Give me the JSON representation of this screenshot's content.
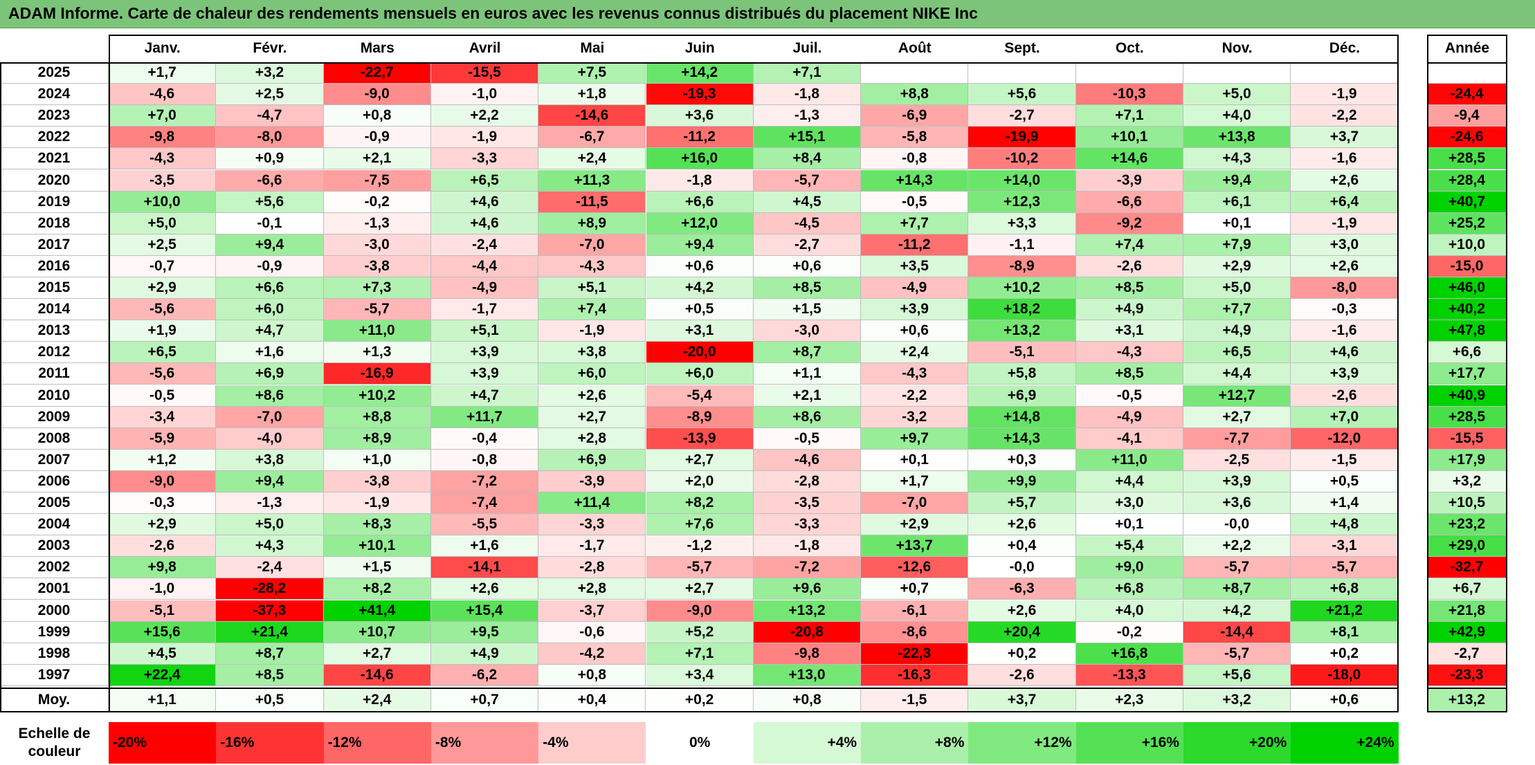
{
  "title": "ADAM Informe. Carte de chaleur des rendements mensuels en euros avec les revenus connus distribués du placement NIKE Inc",
  "chart_data": {
    "type": "heatmap",
    "columns": [
      "Janv.",
      "Févr.",
      "Mars",
      "Avril",
      "Mai",
      "Juin",
      "Juil.",
      "Août",
      "Sept.",
      "Oct.",
      "Nov.",
      "Déc."
    ],
    "year_header": "Année",
    "rows": [
      {
        "year": "2025",
        "values": [
          "+1,7",
          "+3,2",
          "-22,7",
          "-15,5",
          "+7,5",
          "+14,2",
          "+7,1",
          "",
          "",
          "",
          "",
          ""
        ],
        "annual": ""
      },
      {
        "year": "2024",
        "values": [
          "-4,6",
          "+2,5",
          "-9,0",
          "-1,0",
          "+1,8",
          "-19,3",
          "-1,8",
          "+8,8",
          "+5,6",
          "-10,3",
          "+5,0",
          "-1,9"
        ],
        "annual": "-24,4"
      },
      {
        "year": "2023",
        "values": [
          "+7,0",
          "-4,7",
          "+0,8",
          "+2,2",
          "-14,6",
          "+3,6",
          "-1,3",
          "-6,9",
          "-2,7",
          "+7,1",
          "+4,0",
          "-2,2"
        ],
        "annual": "-9,4"
      },
      {
        "year": "2022",
        "values": [
          "-9,8",
          "-8,0",
          "-0,9",
          "-1,9",
          "-6,7",
          "-11,2",
          "+15,1",
          "-5,8",
          "-19,9",
          "+10,1",
          "+13,8",
          "+3,7"
        ],
        "annual": "-24,6"
      },
      {
        "year": "2021",
        "values": [
          "-4,3",
          "+0,9",
          "+2,1",
          "-3,3",
          "+2,4",
          "+16,0",
          "+8,4",
          "-0,8",
          "-10,2",
          "+14,6",
          "+4,3",
          "-1,6"
        ],
        "annual": "+28,5"
      },
      {
        "year": "2020",
        "values": [
          "-3,5",
          "-6,6",
          "-7,5",
          "+6,5",
          "+11,3",
          "-1,8",
          "-5,7",
          "+14,3",
          "+14,0",
          "-3,9",
          "+9,4",
          "+2,6"
        ],
        "annual": "+28,4"
      },
      {
        "year": "2019",
        "values": [
          "+10,0",
          "+5,6",
          "-0,2",
          "+4,6",
          "-11,5",
          "+6,6",
          "+4,5",
          "-0,5",
          "+12,3",
          "-6,6",
          "+6,1",
          "+6,4"
        ],
        "annual": "+40,7"
      },
      {
        "year": "2018",
        "values": [
          "+5,0",
          "-0,1",
          "-1,3",
          "+4,6",
          "+8,9",
          "+12,0",
          "-4,5",
          "+7,7",
          "+3,3",
          "-9,2",
          "+0,1",
          "-1,9"
        ],
        "annual": "+25,2"
      },
      {
        "year": "2017",
        "values": [
          "+2,5",
          "+9,4",
          "-3,0",
          "-2,4",
          "-7,0",
          "+9,4",
          "-2,7",
          "-11,2",
          "-1,1",
          "+7,4",
          "+7,9",
          "+3,0"
        ],
        "annual": "+10,0"
      },
      {
        "year": "2016",
        "values": [
          "-0,7",
          "-0,9",
          "-3,8",
          "-4,4",
          "-4,3",
          "+0,6",
          "+0,6",
          "+3,5",
          "-8,9",
          "-2,6",
          "+2,9",
          "+2,6"
        ],
        "annual": "-15,0"
      },
      {
        "year": "2015",
        "values": [
          "+2,9",
          "+6,6",
          "+7,3",
          "-4,9",
          "+5,1",
          "+4,2",
          "+8,5",
          "-4,9",
          "+10,2",
          "+8,5",
          "+5,0",
          "-8,0"
        ],
        "annual": "+46,0"
      },
      {
        "year": "2014",
        "values": [
          "-5,6",
          "+6,0",
          "-5,7",
          "-1,7",
          "+7,4",
          "+0,5",
          "+1,5",
          "+3,9",
          "+18,2",
          "+4,9",
          "+7,7",
          "-0,3"
        ],
        "annual": "+40,2"
      },
      {
        "year": "2013",
        "values": [
          "+1,9",
          "+4,7",
          "+11,0",
          "+5,1",
          "-1,9",
          "+3,1",
          "-3,0",
          "+0,6",
          "+13,2",
          "+3,1",
          "+4,9",
          "-1,6"
        ],
        "annual": "+47,8"
      },
      {
        "year": "2012",
        "values": [
          "+6,5",
          "+1,6",
          "+1,3",
          "+3,9",
          "+3,8",
          "-20,0",
          "+8,7",
          "+2,4",
          "-5,1",
          "-4,3",
          "+6,5",
          "+4,6"
        ],
        "annual": "+6,6"
      },
      {
        "year": "2011",
        "values": [
          "-5,6",
          "+6,9",
          "-16,9",
          "+3,9",
          "+6,0",
          "+6,0",
          "+1,1",
          "-4,3",
          "+5,8",
          "+8,5",
          "+4,4",
          "+3,9"
        ],
        "annual": "+17,7"
      },
      {
        "year": "2010",
        "values": [
          "-0,5",
          "+8,6",
          "+10,2",
          "+4,7",
          "+2,6",
          "-5,4",
          "+2,1",
          "-2,2",
          "+6,9",
          "-0,5",
          "+12,7",
          "-2,6"
        ],
        "annual": "+40,9"
      },
      {
        "year": "2009",
        "values": [
          "-3,4",
          "-7,0",
          "+8,8",
          "+11,7",
          "+2,7",
          "-8,9",
          "+8,6",
          "-3,2",
          "+14,8",
          "-4,9",
          "+2,7",
          "+7,0"
        ],
        "annual": "+28,5"
      },
      {
        "year": "2008",
        "values": [
          "-5,9",
          "-4,0",
          "+8,9",
          "-0,4",
          "+2,8",
          "-13,9",
          "-0,5",
          "+9,7",
          "+14,3",
          "-4,1",
          "-7,7",
          "-12,0"
        ],
        "annual": "-15,5"
      },
      {
        "year": "2007",
        "values": [
          "+1,2",
          "+3,8",
          "+1,0",
          "-0,8",
          "+6,9",
          "+2,7",
          "-4,6",
          "+0,1",
          "+0,3",
          "+11,0",
          "-2,5",
          "-1,5"
        ],
        "annual": "+17,9"
      },
      {
        "year": "2006",
        "values": [
          "-9,0",
          "+9,4",
          "-3,8",
          "-7,2",
          "-3,9",
          "+2,0",
          "-2,8",
          "+1,7",
          "+9,9",
          "+4,4",
          "+3,9",
          "+0,5"
        ],
        "annual": "+3,2"
      },
      {
        "year": "2005",
        "values": [
          "-0,3",
          "-1,3",
          "-1,9",
          "-7,4",
          "+11,4",
          "+8,2",
          "-3,5",
          "-7,0",
          "+5,7",
          "+3,0",
          "+3,6",
          "+1,4"
        ],
        "annual": "+10,5"
      },
      {
        "year": "2004",
        "values": [
          "+2,9",
          "+5,0",
          "+8,3",
          "-5,5",
          "-3,3",
          "+7,6",
          "-3,3",
          "+2,9",
          "+2,6",
          "+0,1",
          "-0,0",
          "+4,8"
        ],
        "annual": "+23,2"
      },
      {
        "year": "2003",
        "values": [
          "-2,6",
          "+4,3",
          "+10,1",
          "+1,6",
          "-1,7",
          "-1,2",
          "-1,8",
          "+13,7",
          "+0,4",
          "+5,4",
          "+2,2",
          "-3,1"
        ],
        "annual": "+29,0"
      },
      {
        "year": "2002",
        "values": [
          "+9,8",
          "-2,4",
          "+1,5",
          "-14,1",
          "-2,8",
          "-5,7",
          "-7,2",
          "-12,6",
          "-0,0",
          "+9,0",
          "-5,7",
          "-5,7"
        ],
        "annual": "-32,7"
      },
      {
        "year": "2001",
        "values": [
          "-1,0",
          "-28,2",
          "+8,2",
          "+2,6",
          "+2,8",
          "+2,7",
          "+9,6",
          "+0,7",
          "-6,3",
          "+6,8",
          "+8,7",
          "+6,8"
        ],
        "annual": "+6,7"
      },
      {
        "year": "2000",
        "values": [
          "-5,1",
          "-37,3",
          "+41,4",
          "+15,4",
          "-3,7",
          "-9,0",
          "+13,2",
          "-6,1",
          "+2,6",
          "+4,0",
          "+4,2",
          "+21,2"
        ],
        "annual": "+21,8"
      },
      {
        "year": "1999",
        "values": [
          "+15,6",
          "+21,4",
          "+10,7",
          "+9,5",
          "-0,6",
          "+5,2",
          "-20,8",
          "-8,6",
          "+20,4",
          "-0,2",
          "-14,4",
          "+8,1"
        ],
        "annual": "+42,9"
      },
      {
        "year": "1998",
        "values": [
          "+4,5",
          "+8,7",
          "+2,7",
          "+4,9",
          "-4,2",
          "+7,1",
          "-9,8",
          "-22,3",
          "+0,2",
          "+16,8",
          "-5,7",
          "+0,2"
        ],
        "annual": "-2,7"
      },
      {
        "year": "1997",
        "values": [
          "+22,4",
          "+8,5",
          "-14,6",
          "-6,2",
          "+0,8",
          "+3,4",
          "+13,0",
          "-16,3",
          "-2,6",
          "-13,3",
          "+5,6",
          "-18,0"
        ],
        "annual": "-23,3"
      }
    ],
    "average": {
      "label": "Moy.",
      "values": [
        "+1,1",
        "+0,5",
        "+2,4",
        "+0,7",
        "+0,4",
        "+0,2",
        "+0,8",
        "-1,5",
        "+3,7",
        "+2,3",
        "+3,2",
        "+0,6"
      ],
      "annual": "+13,2"
    },
    "scale": {
      "label": "Echelle de couleur",
      "entries": [
        "-20%",
        "-16%",
        "-12%",
        "-8%",
        "-4%",
        "0%",
        "+4%",
        "+8%",
        "+12%",
        "+16%",
        "+20%",
        "+24%"
      ],
      "values": [
        -20,
        -16,
        -12,
        -8,
        -4,
        0,
        4,
        8,
        12,
        16,
        20,
        24
      ]
    },
    "colors": {
      "negative": "#ff0000",
      "neutral": "#ffffff",
      "positive": "#00cc00",
      "title_bg": "#7cc47a"
    }
  }
}
